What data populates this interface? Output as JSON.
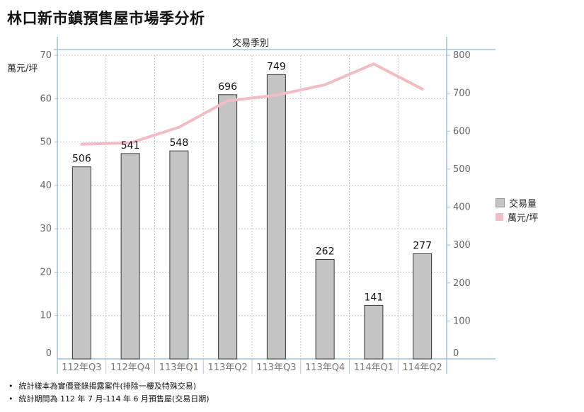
{
  "title": "林口新市鎮預售屋市場季分析",
  "notes": [
    "統計樣本為實價登錄揭露案件(排除一樓及特殊交易)",
    "統計期間為 112 年 7 月-114 年 6 月預售屋(交易日期)"
  ],
  "chart_data": {
    "type": "bar",
    "xlabel": "交易季別",
    "ylabel": "萬元/坪",
    "categories": [
      "112年Q3",
      "112年Q4",
      "113年Q1",
      "113年Q2",
      "113年Q3",
      "113年Q4",
      "114年Q1",
      "114年Q2"
    ],
    "series": [
      {
        "name": "交易量",
        "type": "bar",
        "axis": "right",
        "color": "#c4c4c4",
        "values": [
          506,
          541,
          548,
          696,
          749,
          262,
          141,
          277
        ]
      },
      {
        "name": "萬元/坪",
        "type": "line",
        "axis": "left",
        "color": "#f2bcc4",
        "values": [
          49.5,
          49.8,
          53.4,
          59.5,
          60.8,
          63.2,
          68.0,
          62.2
        ]
      }
    ],
    "ylim_left": [
      0,
      70
    ],
    "yticks_left": [
      0,
      10,
      20,
      30,
      40,
      50,
      60,
      70
    ],
    "ylim_right": [
      0,
      800
    ],
    "yticks_right": [
      0,
      100,
      200,
      300,
      400,
      500,
      600,
      700,
      800
    ],
    "grid": true,
    "legend": "right"
  }
}
